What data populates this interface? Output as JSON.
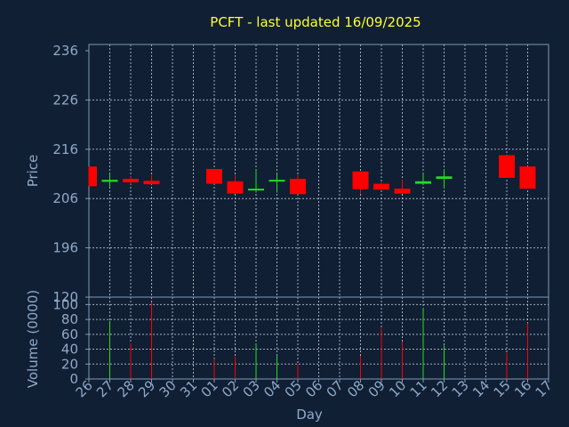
{
  "chart_data": {
    "type": "candlestick",
    "title": "PCFT - last updated 16/09/2025",
    "xlabel": "Day",
    "ylabel": "Price",
    "volume_label": "Volume (0000)",
    "x_ticks": [
      "26",
      "27",
      "28",
      "29",
      "30",
      "31",
      "01",
      "02",
      "03",
      "04",
      "05",
      "06",
      "07",
      "08",
      "09",
      "10",
      "11",
      "12",
      "13",
      "14",
      "15",
      "16",
      "17"
    ],
    "price_ticks": [
      "236",
      "226",
      "216",
      "206",
      "196",
      "120"
    ],
    "volume_ticks": [
      "100",
      "80",
      "60",
      "40",
      "20",
      "0"
    ],
    "ylim": [
      186,
      236
    ],
    "volume_ylim": [
      0,
      110
    ],
    "grid": true,
    "colors": {
      "up": "#22dd22",
      "down": "#ff0000"
    },
    "candles": [
      {
        "day": "26",
        "open": 212.5,
        "close": 208.5,
        "high": 212.5,
        "low": 208.5,
        "volume": 0
      },
      {
        "day": "27",
        "open": 209.4,
        "close": 209.8,
        "high": 211.0,
        "low": 208.4,
        "volume": 78
      },
      {
        "day": "28",
        "open": 210.0,
        "close": 209.3,
        "high": 210.5,
        "low": 209.0,
        "volume": 48
      },
      {
        "day": "29",
        "open": 209.6,
        "close": 208.9,
        "high": 210.8,
        "low": 208.9,
        "volume": 103
      },
      {
        "day": "01",
        "open": 212.0,
        "close": 209.0,
        "high": 212.0,
        "low": 209.0,
        "volume": 27
      },
      {
        "day": "02",
        "open": 209.5,
        "close": 207.0,
        "high": 210.8,
        "low": 207.0,
        "volume": 30
      },
      {
        "day": "03",
        "open": 207.8,
        "close": 208.0,
        "high": 211.8,
        "low": 207.2,
        "volume": 48
      },
      {
        "day": "04",
        "open": 209.5,
        "close": 209.8,
        "high": 211.0,
        "low": 207.2,
        "volume": 32
      },
      {
        "day": "05",
        "open": 210.0,
        "close": 206.9,
        "high": 210.8,
        "low": 206.9,
        "volume": 20
      },
      {
        "day": "08",
        "open": 211.5,
        "close": 207.9,
        "high": 211.5,
        "low": 207.0,
        "volume": 31
      },
      {
        "day": "09",
        "open": 209.0,
        "close": 207.8,
        "high": 209.3,
        "low": 207.8,
        "volume": 68
      },
      {
        "day": "10",
        "open": 208.0,
        "close": 207.0,
        "high": 209.8,
        "low": 207.0,
        "volume": 50
      },
      {
        "day": "11",
        "open": 209.0,
        "close": 209.5,
        "high": 211.0,
        "low": 208.8,
        "volume": 95
      },
      {
        "day": "12",
        "open": 210.0,
        "close": 210.5,
        "high": 212.0,
        "low": 208.0,
        "volume": 45
      },
      {
        "day": "15",
        "open": 214.8,
        "close": 210.2,
        "high": 214.8,
        "low": 210.2,
        "volume": 35
      },
      {
        "day": "16",
        "open": 212.5,
        "close": 208.0,
        "high": 212.5,
        "low": 208.0,
        "volume": 75
      }
    ]
  }
}
